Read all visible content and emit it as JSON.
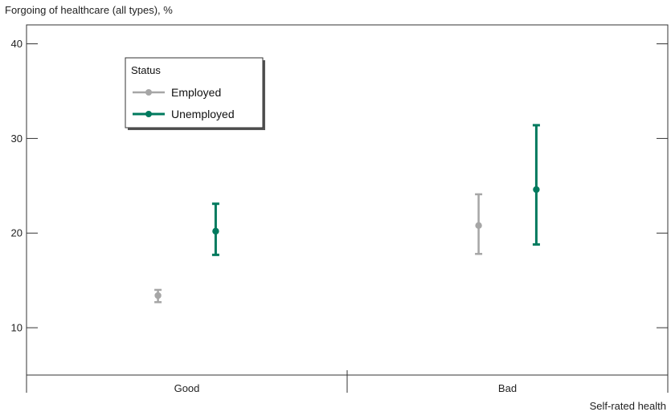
{
  "chart_data": {
    "type": "scatter",
    "ylabel": "Forgoing of healthcare (all types), %",
    "xlabel": "Self-rated health",
    "categories": [
      "Good",
      "Bad"
    ],
    "ylim": [
      5,
      42
    ],
    "yticks": [
      10,
      20,
      30,
      40
    ],
    "grid": false,
    "legend": {
      "title": "Status",
      "placement": "top-left"
    },
    "series": [
      {
        "name": "Employed",
        "color": "#a6a6a6",
        "values": [
          13.4,
          20.8
        ],
        "lower": [
          12.7,
          17.8
        ],
        "upper": [
          14.0,
          24.1
        ]
      },
      {
        "name": "Unemployed",
        "color": "#007a5e",
        "values": [
          20.2,
          24.6
        ],
        "lower": [
          17.7,
          18.8
        ],
        "upper": [
          23.1,
          31.4
        ]
      }
    ]
  }
}
